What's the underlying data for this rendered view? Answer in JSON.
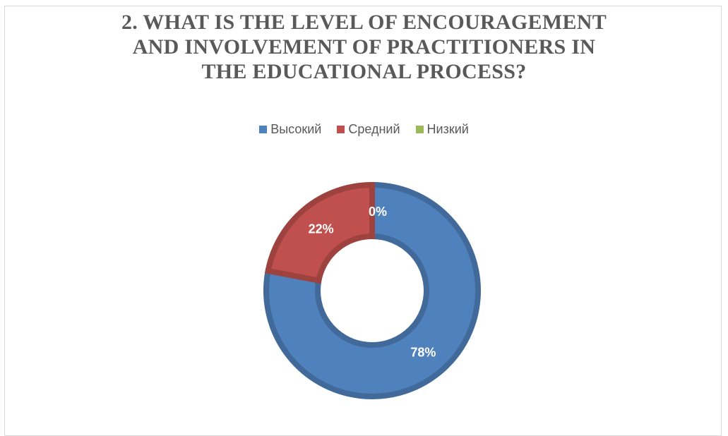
{
  "chart_data": {
    "type": "pie",
    "title_lines": [
      "2. WHAT IS THE LEVEL OF ENCOURAGEMENT",
      "AND INVOLVEMENT OF PRACTITIONERS IN",
      "THE EDUCATIONAL PROCESS?"
    ],
    "donut": true,
    "legend_position": "top",
    "categories": [
      "Высокий",
      "Средний",
      "Низкий"
    ],
    "values": [
      78,
      22,
      0
    ],
    "data_labels": [
      "78%",
      "22%",
      "0%"
    ],
    "colors": [
      "#4f81bd",
      "#c0504d",
      "#9bbb59"
    ]
  }
}
